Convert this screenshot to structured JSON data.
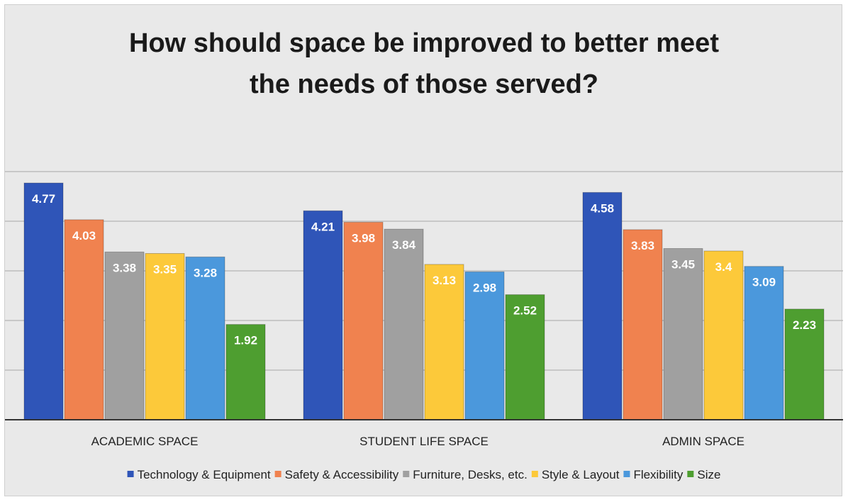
{
  "chart_data": {
    "type": "bar",
    "title_lines": [
      "How should space be improved to better meet",
      "the needs of those served?"
    ],
    "categories": [
      "ACADEMIC SPACE",
      "STUDENT LIFE SPACE",
      "ADMIN SPACE"
    ],
    "series": [
      {
        "name": "Technology & Equipment",
        "color": "#2f55b8",
        "values": [
          4.77,
          4.21,
          4.58
        ]
      },
      {
        "name": "Safety & Accessibility",
        "color": "#f0824f",
        "values": [
          4.03,
          3.98,
          3.83
        ]
      },
      {
        "name": "Furniture, Desks, etc.",
        "color": "#a0a0a0",
        "values": [
          3.38,
          3.84,
          3.45
        ]
      },
      {
        "name": "Style & Layout",
        "color": "#fcc93a",
        "values": [
          3.35,
          3.13,
          3.4
        ]
      },
      {
        "name": "Flexibility",
        "color": "#4b98dc",
        "values": [
          3.28,
          2.98,
          3.09
        ]
      },
      {
        "name": "Size",
        "color": "#4e9e30",
        "values": [
          1.92,
          2.52,
          2.23
        ]
      }
    ],
    "value_labels": [
      [
        "4.77",
        "4.21",
        "4.58"
      ],
      [
        "4.03",
        "3.98",
        "3.83"
      ],
      [
        "3.38",
        "3.84",
        "3.45"
      ],
      [
        "3.35",
        "3.13",
        "3.4"
      ],
      [
        "3.28",
        "2.98",
        "3.09"
      ],
      [
        "1.92",
        "2.52",
        "2.23"
      ]
    ],
    "ylim": [
      0,
      5
    ],
    "grid": true,
    "legend": "bottom"
  }
}
